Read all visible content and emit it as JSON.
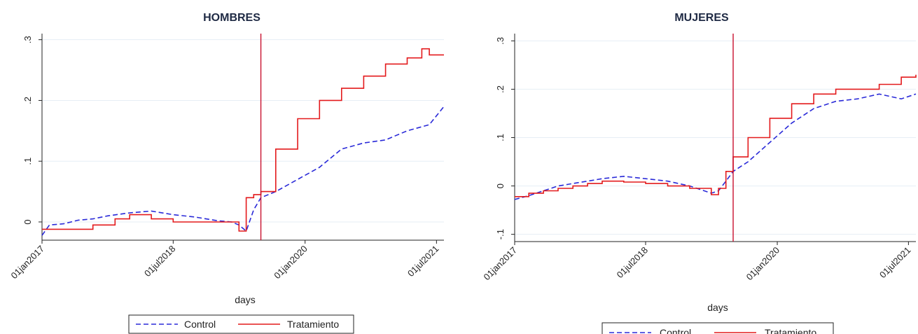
{
  "colors": {
    "control": "#2a2ad8",
    "tratamiento": "#e31a1c",
    "vline": "#c8102e",
    "grid": "#e6eef5",
    "axis": "#222222"
  },
  "chart_data": [
    {
      "type": "line",
      "title": "HOMBRES",
      "xlabel": "days",
      "ylabel": "",
      "x_tick_labels": [
        "01jan2017",
        "01jul2018",
        "01jan2020",
        "01jul2021"
      ],
      "x_ticks": [
        "2017-01-01",
        "2018-07-01",
        "2020-01-01",
        "2021-07-01"
      ],
      "xlim": [
        "2017-01-01",
        "2021-08-01"
      ],
      "y_tick_labels": [
        "0",
        ".1",
        ".2",
        ".3"
      ],
      "y_ticks": [
        0,
        0.1,
        0.2,
        0.3
      ],
      "ylim": [
        -0.03,
        0.31
      ],
      "vline": "2019-07-01",
      "legend": "bottom",
      "series": [
        {
          "name": "Control",
          "style": "dashed",
          "x": [
            "2017-01-01",
            "2017-02-01",
            "2017-04-01",
            "2017-06-01",
            "2017-08-01",
            "2017-10-01",
            "2018-01-01",
            "2018-04-01",
            "2018-07-01",
            "2018-10-01",
            "2019-01-01",
            "2019-03-01",
            "2019-04-01",
            "2019-05-01",
            "2019-06-01",
            "2019-07-01",
            "2019-09-01",
            "2019-12-01",
            "2020-03-01",
            "2020-06-01",
            "2020-09-01",
            "2020-12-01",
            "2021-03-01",
            "2021-06-01",
            "2021-08-01"
          ],
          "values": [
            -0.022,
            -0.005,
            -0.003,
            0.003,
            0.005,
            0.01,
            0.015,
            0.018,
            0.012,
            0.008,
            0.002,
            0.0,
            -0.005,
            -0.015,
            0.02,
            0.04,
            0.05,
            0.07,
            0.09,
            0.12,
            0.13,
            0.135,
            0.15,
            0.16,
            0.19
          ]
        },
        {
          "name": "Tratamiento",
          "style": "solid",
          "x": [
            "2017-01-01",
            "2017-02-01",
            "2017-05-01",
            "2017-08-01",
            "2017-11-01",
            "2018-01-01",
            "2018-04-01",
            "2018-07-01",
            "2018-10-01",
            "2019-01-01",
            "2019-04-01",
            "2019-05-01",
            "2019-06-01",
            "2019-07-01",
            "2019-09-01",
            "2019-12-01",
            "2020-03-01",
            "2020-06-01",
            "2020-09-01",
            "2020-12-01",
            "2021-03-01",
            "2021-05-01",
            "2021-06-01",
            "2021-08-01"
          ],
          "values": [
            -0.012,
            -0.012,
            -0.012,
            -0.005,
            0.005,
            0.012,
            0.005,
            0.0,
            0.0,
            0.0,
            -0.015,
            0.04,
            0.045,
            0.05,
            0.12,
            0.17,
            0.2,
            0.22,
            0.24,
            0.26,
            0.27,
            0.285,
            0.275,
            0.275
          ]
        }
      ]
    },
    {
      "type": "line",
      "title": "MUJERES",
      "xlabel": "days",
      "ylabel": "",
      "x_tick_labels": [
        "01jan2017",
        "01jul2018",
        "01jan2020",
        "01jul2021"
      ],
      "x_ticks": [
        "2017-01-01",
        "2018-07-01",
        "2020-01-01",
        "2021-07-01"
      ],
      "xlim": [
        "2017-01-01",
        "2021-08-01"
      ],
      "y_tick_labels": [
        "-.1",
        "0",
        ".1",
        ".2",
        ".3"
      ],
      "y_ticks": [
        -0.1,
        0,
        0.1,
        0.2,
        0.3
      ],
      "ylim": [
        -0.115,
        0.315
      ],
      "vline": "2019-07-01",
      "legend": "bottom",
      "series": [
        {
          "name": "Control",
          "style": "dashed",
          "x": [
            "2017-01-01",
            "2017-03-01",
            "2017-05-01",
            "2017-07-01",
            "2017-09-01",
            "2017-11-01",
            "2018-01-01",
            "2018-04-01",
            "2018-07-01",
            "2018-10-01",
            "2019-01-01",
            "2019-04-01",
            "2019-05-01",
            "2019-06-01",
            "2019-07-01",
            "2019-09-01",
            "2019-12-01",
            "2020-03-01",
            "2020-06-01",
            "2020-09-01",
            "2020-12-01",
            "2021-03-01",
            "2021-06-01",
            "2021-08-01"
          ],
          "values": [
            -0.028,
            -0.02,
            -0.01,
            0.0,
            0.005,
            0.01,
            0.015,
            0.02,
            0.015,
            0.01,
            0.0,
            -0.015,
            -0.01,
            0.01,
            0.03,
            0.05,
            0.09,
            0.13,
            0.16,
            0.175,
            0.18,
            0.19,
            0.18,
            0.19
          ]
        },
        {
          "name": "Tratamiento",
          "style": "solid",
          "x": [
            "2017-01-01",
            "2017-03-01",
            "2017-05-01",
            "2017-07-01",
            "2017-09-01",
            "2017-11-01",
            "2018-01-01",
            "2018-04-01",
            "2018-07-01",
            "2018-10-01",
            "2019-01-01",
            "2019-04-01",
            "2019-05-01",
            "2019-06-01",
            "2019-07-01",
            "2019-09-01",
            "2019-12-01",
            "2020-03-01",
            "2020-06-01",
            "2020-09-01",
            "2020-12-01",
            "2021-03-01",
            "2021-06-01",
            "2021-08-01"
          ],
          "values": [
            -0.022,
            -0.015,
            -0.01,
            -0.005,
            0.0,
            0.005,
            0.01,
            0.008,
            0.005,
            0.0,
            -0.005,
            -0.018,
            -0.005,
            0.03,
            0.06,
            0.1,
            0.14,
            0.17,
            0.19,
            0.2,
            0.2,
            0.21,
            0.225,
            0.23
          ]
        }
      ]
    }
  ]
}
